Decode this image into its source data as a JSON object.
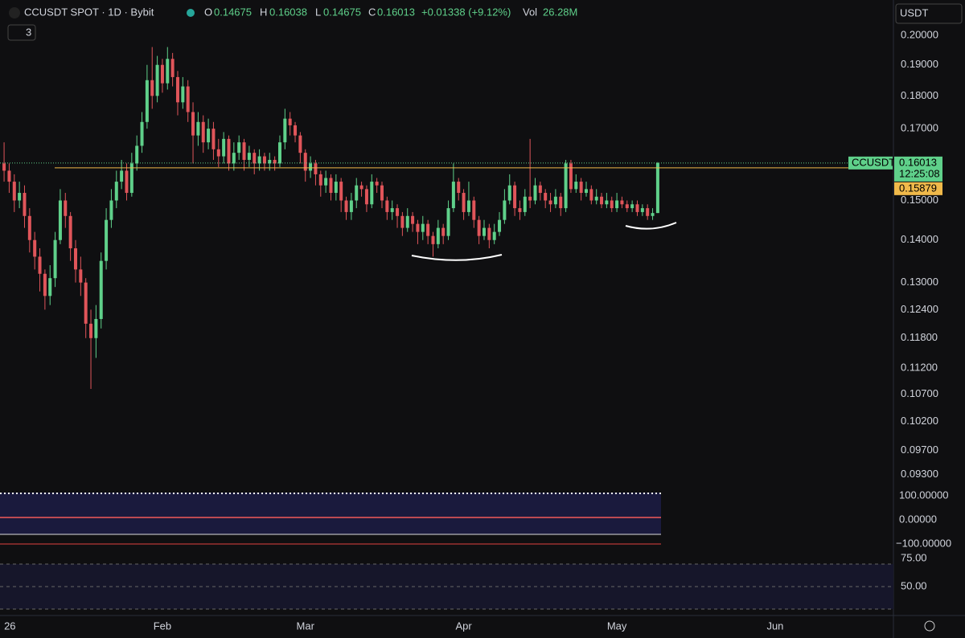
{
  "header": {
    "symbol": "CCUSDT SPOT · 1D · Bybit",
    "o_label": "O",
    "o": "0.14675",
    "h_label": "H",
    "h": "0.16038",
    "l_label": "L",
    "l": "0.14675",
    "c_label": "C",
    "c": "0.16013",
    "change": "+0.01338 (+9.12%)",
    "vol_label": "Vol",
    "vol": "26.28M",
    "badge": "3",
    "currency": "USDT"
  },
  "indicators": {
    "osc_ticks": [
      "100.00000",
      "0.00000",
      "−100.00000"
    ],
    "rsi_ticks": [
      "75.00",
      "50.00"
    ]
  },
  "chart_data": {
    "type": "candlestick",
    "log_scale": true,
    "up_color": "#5fd08a",
    "down_color": "#e0555a",
    "xlim": [
      -0.8,
      174
    ],
    "xticks": [
      {
        "value": 0,
        "label": "26"
      },
      {
        "value": 31,
        "label": "Feb"
      },
      {
        "value": 59,
        "label": "Mar"
      },
      {
        "value": 90,
        "label": "Apr"
      },
      {
        "value": 120,
        "label": "May"
      },
      {
        "value": 151,
        "label": "Jun"
      }
    ],
    "ylim": [
      0.0918,
      0.204
    ],
    "yticks": [
      {
        "value": 0.2,
        "label": "0.20000"
      },
      {
        "value": 0.19,
        "label": "0.19000"
      },
      {
        "value": 0.18,
        "label": "0.18000"
      },
      {
        "value": 0.17,
        "label": "0.17000"
      },
      {
        "value": 0.15,
        "label": "0.15000"
      },
      {
        "value": 0.14,
        "label": "0.14000"
      },
      {
        "value": 0.13,
        "label": "0.13000"
      },
      {
        "value": 0.124,
        "label": "0.12400"
      },
      {
        "value": 0.118,
        "label": "0.11800"
      },
      {
        "value": 0.112,
        "label": "0.11200"
      },
      {
        "value": 0.107,
        "label": "0.10700"
      },
      {
        "value": 0.102,
        "label": "0.10200"
      },
      {
        "value": 0.097,
        "label": "0.09700"
      },
      {
        "value": 0.093,
        "label": "0.09300"
      }
    ],
    "price_line": {
      "name": "CCUSDT",
      "value": 0.16013,
      "countdown": "12:25:08"
    },
    "marker_line": 0.15879,
    "open": [
      0.16,
      0.158,
      0.155,
      0.15,
      0.152,
      0.146,
      0.14,
      0.136,
      0.132,
      0.127,
      0.131,
      0.14,
      0.15,
      0.146,
      0.138,
      0.133,
      0.13,
      0.121,
      0.118,
      0.122,
      0.135,
      0.145,
      0.15,
      0.155,
      0.158,
      0.152,
      0.16,
      0.165,
      0.172,
      0.185,
      0.18,
      0.19,
      0.184,
      0.192,
      0.186,
      0.178,
      0.183,
      0.175,
      0.168,
      0.172,
      0.166,
      0.17,
      0.164,
      0.162,
      0.167,
      0.16,
      0.163,
      0.166,
      0.161,
      0.163,
      0.16,
      0.162,
      0.16,
      0.161,
      0.16,
      0.166,
      0.173,
      0.171,
      0.168,
      0.163,
      0.158,
      0.16,
      0.157,
      0.154,
      0.156,
      0.152,
      0.155,
      0.15,
      0.147,
      0.15,
      0.154,
      0.153,
      0.149,
      0.155,
      0.154,
      0.15,
      0.147,
      0.148,
      0.146,
      0.143,
      0.146,
      0.144,
      0.142,
      0.144,
      0.141,
      0.139,
      0.143,
      0.141,
      0.148,
      0.155,
      0.152,
      0.147,
      0.15,
      0.145,
      0.141,
      0.143,
      0.14,
      0.142,
      0.145,
      0.15,
      0.154,
      0.148,
      0.147,
      0.151,
      0.15,
      0.154,
      0.152,
      0.15,
      0.149,
      0.151,
      0.148,
      0.16,
      0.153,
      0.155,
      0.152,
      0.153,
      0.15,
      0.151,
      0.149,
      0.15,
      0.148,
      0.15,
      0.149,
      0.148,
      0.149,
      0.147,
      0.148,
      0.146,
      0.14675
    ],
    "high": [
      0.166,
      0.16,
      0.157,
      0.155,
      0.154,
      0.148,
      0.142,
      0.138,
      0.133,
      0.134,
      0.142,
      0.153,
      0.152,
      0.147,
      0.14,
      0.136,
      0.131,
      0.124,
      0.125,
      0.137,
      0.148,
      0.153,
      0.158,
      0.161,
      0.16,
      0.163,
      0.168,
      0.175,
      0.19,
      0.196,
      0.193,
      0.192,
      0.196,
      0.194,
      0.188,
      0.186,
      0.185,
      0.178,
      0.175,
      0.174,
      0.173,
      0.172,
      0.167,
      0.169,
      0.168,
      0.166,
      0.168,
      0.167,
      0.165,
      0.164,
      0.164,
      0.163,
      0.163,
      0.162,
      0.168,
      0.176,
      0.175,
      0.172,
      0.169,
      0.164,
      0.162,
      0.161,
      0.158,
      0.158,
      0.157,
      0.157,
      0.156,
      0.151,
      0.152,
      0.156,
      0.155,
      0.154,
      0.157,
      0.156,
      0.155,
      0.151,
      0.15,
      0.149,
      0.147,
      0.148,
      0.147,
      0.145,
      0.146,
      0.145,
      0.142,
      0.145,
      0.144,
      0.15,
      0.16,
      0.156,
      0.153,
      0.155,
      0.151,
      0.146,
      0.145,
      0.144,
      0.144,
      0.147,
      0.153,
      0.157,
      0.155,
      0.15,
      0.153,
      0.167,
      0.156,
      0.155,
      0.153,
      0.152,
      0.153,
      0.152,
      0.161,
      0.161,
      0.157,
      0.156,
      0.155,
      0.154,
      0.153,
      0.152,
      0.152,
      0.151,
      0.152,
      0.151,
      0.15,
      0.15,
      0.15,
      0.149,
      0.149,
      0.148,
      0.16038
    ],
    "low": [
      0.155,
      0.152,
      0.147,
      0.148,
      0.143,
      0.137,
      0.133,
      0.128,
      0.124,
      0.125,
      0.129,
      0.139,
      0.143,
      0.135,
      0.13,
      0.127,
      0.118,
      0.108,
      0.114,
      0.12,
      0.133,
      0.143,
      0.148,
      0.153,
      0.15,
      0.151,
      0.158,
      0.163,
      0.17,
      0.176,
      0.178,
      0.181,
      0.182,
      0.183,
      0.174,
      0.176,
      0.172,
      0.16,
      0.165,
      0.163,
      0.164,
      0.161,
      0.159,
      0.16,
      0.158,
      0.158,
      0.161,
      0.158,
      0.159,
      0.157,
      0.158,
      0.158,
      0.158,
      0.158,
      0.159,
      0.164,
      0.168,
      0.166,
      0.16,
      0.155,
      0.156,
      0.154,
      0.151,
      0.152,
      0.15,
      0.15,
      0.147,
      0.145,
      0.145,
      0.148,
      0.151,
      0.147,
      0.148,
      0.152,
      0.148,
      0.145,
      0.145,
      0.143,
      0.141,
      0.142,
      0.142,
      0.139,
      0.14,
      0.139,
      0.136,
      0.138,
      0.139,
      0.14,
      0.147,
      0.15,
      0.145,
      0.146,
      0.143,
      0.139,
      0.14,
      0.138,
      0.139,
      0.141,
      0.144,
      0.149,
      0.146,
      0.145,
      0.146,
      0.148,
      0.149,
      0.15,
      0.148,
      0.147,
      0.148,
      0.146,
      0.147,
      0.152,
      0.152,
      0.15,
      0.151,
      0.149,
      0.149,
      0.148,
      0.148,
      0.147,
      0.147,
      0.148,
      0.147,
      0.147,
      0.146,
      0.146,
      0.145,
      0.145,
      0.14675
    ],
    "close": [
      0.158,
      0.155,
      0.15,
      0.152,
      0.146,
      0.14,
      0.136,
      0.132,
      0.127,
      0.131,
      0.14,
      0.15,
      0.146,
      0.138,
      0.133,
      0.13,
      0.121,
      0.118,
      0.122,
      0.135,
      0.145,
      0.15,
      0.155,
      0.158,
      0.152,
      0.16,
      0.165,
      0.172,
      0.185,
      0.18,
      0.19,
      0.184,
      0.192,
      0.186,
      0.178,
      0.183,
      0.175,
      0.168,
      0.172,
      0.166,
      0.17,
      0.164,
      0.162,
      0.167,
      0.16,
      0.163,
      0.166,
      0.161,
      0.163,
      0.16,
      0.162,
      0.16,
      0.161,
      0.16,
      0.166,
      0.173,
      0.171,
      0.168,
      0.163,
      0.158,
      0.16,
      0.157,
      0.154,
      0.156,
      0.152,
      0.155,
      0.15,
      0.147,
      0.15,
      0.154,
      0.153,
      0.149,
      0.155,
      0.154,
      0.15,
      0.147,
      0.148,
      0.146,
      0.143,
      0.146,
      0.144,
      0.142,
      0.144,
      0.141,
      0.139,
      0.143,
      0.141,
      0.148,
      0.155,
      0.152,
      0.147,
      0.15,
      0.145,
      0.141,
      0.143,
      0.14,
      0.142,
      0.145,
      0.15,
      0.154,
      0.148,
      0.147,
      0.151,
      0.15,
      0.154,
      0.152,
      0.15,
      0.149,
      0.151,
      0.148,
      0.16,
      0.153,
      0.155,
      0.152,
      0.153,
      0.15,
      0.151,
      0.149,
      0.15,
      0.148,
      0.15,
      0.149,
      0.148,
      0.149,
      0.147,
      0.148,
      0.146,
      0.14675,
      0.16013
    ]
  }
}
